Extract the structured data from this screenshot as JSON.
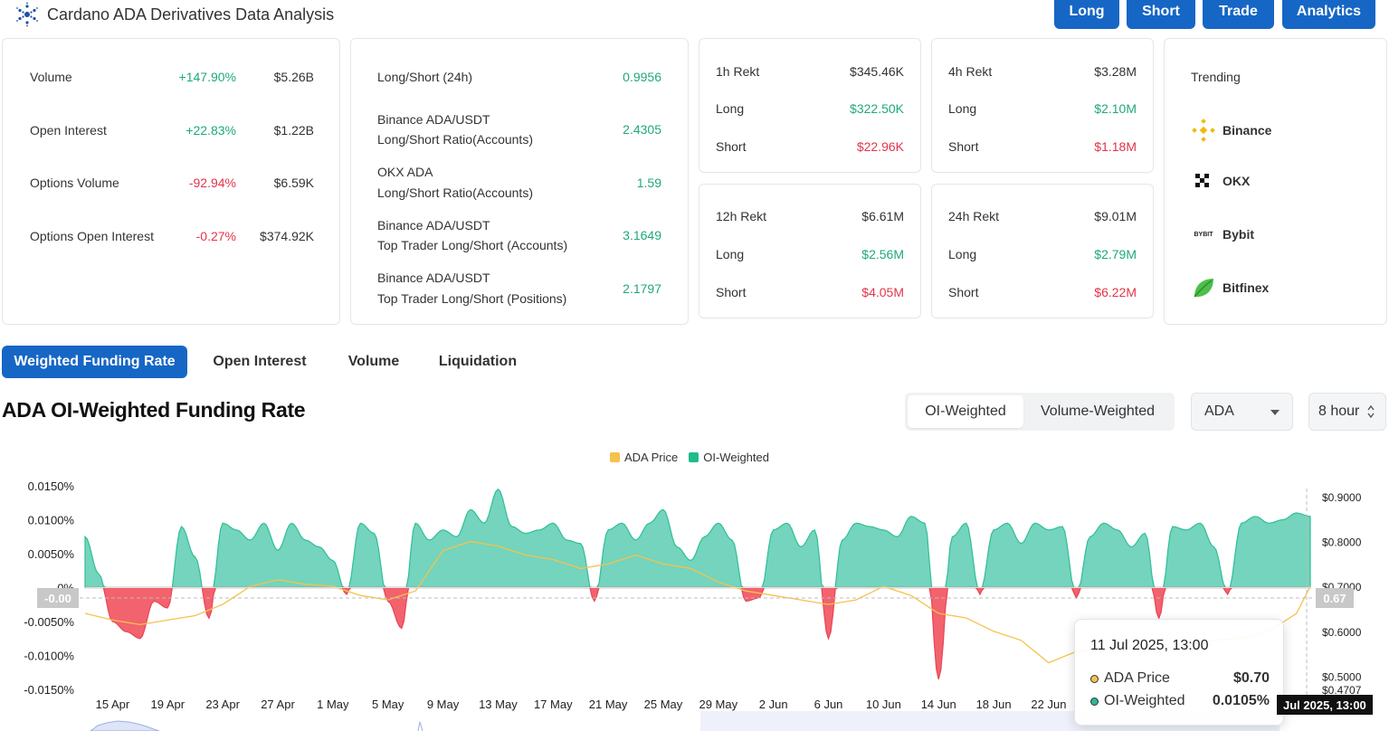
{
  "header": {
    "title": "Cardano ADA Derivatives Data Analysis",
    "buttons": [
      "Long",
      "Short",
      "Trade",
      "Analytics"
    ]
  },
  "overview": {
    "rows": [
      {
        "label": "Volume",
        "change": "+147.90%",
        "value": "$5.26B",
        "dir": "up"
      },
      {
        "label": "Open Interest",
        "change": "+22.83%",
        "value": "$1.22B",
        "dir": "up"
      },
      {
        "label": "Options Volume",
        "change": "-92.94%",
        "value": "$6.59K",
        "dir": "down"
      },
      {
        "label": "Options Open Interest",
        "change": "-0.27%",
        "value": "$374.92K",
        "dir": "down"
      }
    ]
  },
  "ratios": {
    "rows": [
      {
        "line1": "Long/Short (24h)",
        "line2": "",
        "value": "0.9956"
      },
      {
        "line1": "Binance ADA/USDT",
        "line2": "Long/Short Ratio(Accounts)",
        "value": "2.4305"
      },
      {
        "line1": "OKX ADA",
        "line2": "Long/Short Ratio(Accounts)",
        "value": "1.59"
      },
      {
        "line1": "Binance ADA/USDT",
        "line2": "Top Trader Long/Short (Accounts)",
        "value": "3.1649"
      },
      {
        "line1": "Binance ADA/USDT",
        "line2": "Top Trader Long/Short (Positions)",
        "value": "2.1797"
      }
    ]
  },
  "rekt": [
    {
      "title": "1h Rekt",
      "total": "$345.46K",
      "long_label": "Long",
      "long": "$322.50K",
      "short_label": "Short",
      "short": "$22.96K"
    },
    {
      "title": "4h Rekt",
      "total": "$3.28M",
      "long_label": "Long",
      "long": "$2.10M",
      "short_label": "Short",
      "short": "$1.18M"
    },
    {
      "title": "12h Rekt",
      "total": "$6.61M",
      "long_label": "Long",
      "long": "$2.56M",
      "short_label": "Short",
      "short": "$4.05M"
    },
    {
      "title": "24h Rekt",
      "total": "$9.01M",
      "long_label": "Long",
      "long": "$2.79M",
      "short_label": "Short",
      "short": "$6.22M"
    }
  ],
  "trending": {
    "title": "Trending",
    "items": [
      "Binance",
      "OKX",
      "Bybit",
      "Bitfinex"
    ],
    "bybit_logo_text": "BYBIT"
  },
  "tabs": [
    "Weighted Funding Rate",
    "Open Interest",
    "Volume",
    "Liquidation"
  ],
  "chart_section": {
    "title": "ADA OI-Weighted Funding Rate",
    "segments": [
      "OI-Weighted",
      "Volume-Weighted"
    ],
    "symbol": "ADA",
    "interval": "8 hour"
  },
  "tooltip": {
    "date": "11 Jul 2025, 13:00",
    "price_label": "ADA Price",
    "price_value": "$0.70",
    "rate_label": "OI-Weighted",
    "rate_value": "0.0105%"
  },
  "crosshair": {
    "x_label": "Jul 2025, 13:00",
    "left_label": "-0.00",
    "right_label": "0.67"
  },
  "colors": {
    "accent": "#1666c5",
    "positive": "#1ea97c",
    "negative": "#e3344a",
    "area_pos": "#5ccdb2",
    "area_neg": "#f2636e",
    "price_line": "#f5c24c"
  },
  "chart_data": {
    "type": "area",
    "legend": [
      "ADA Price",
      "OI-Weighted"
    ],
    "legend_position": "top-center",
    "x_ticks": [
      "15 Apr",
      "19 Apr",
      "23 Apr",
      "27 Apr",
      "1 May",
      "5 May",
      "9 May",
      "13 May",
      "17 May",
      "21 May",
      "25 May",
      "29 May",
      "2 Jun",
      "6 Jun",
      "10 Jun",
      "14 Jun",
      "18 Jun",
      "22 Jun"
    ],
    "y_left_ticks": [
      "0.0150%",
      "0.0100%",
      "0.0050%",
      "0%",
      "-0.0050%",
      "-0.0100%",
      "-0.0150%"
    ],
    "y_left_range": [
      -0.015,
      0.015
    ],
    "y_right_ticks": [
      "$0.9000",
      "$0.8000",
      "$0.7000",
      "$0.6000",
      "$0.5000",
      "$0.4707"
    ],
    "y_right_range": [
      0.4707,
      0.9
    ],
    "funding_rate_series": {
      "name": "OI-Weighted",
      "x": [
        "13 Apr",
        "14 Apr",
        "15 Apr",
        "16 Apr",
        "17 Apr",
        "18 Apr",
        "19 Apr",
        "20 Apr",
        "21 Apr",
        "22 Apr",
        "23 Apr",
        "24 Apr",
        "25 Apr",
        "26 Apr",
        "27 Apr",
        "28 Apr",
        "29 Apr",
        "30 Apr",
        "1 May",
        "2 May",
        "3 May",
        "4 May",
        "5 May",
        "6 May",
        "7 May",
        "8 May",
        "9 May",
        "10 May",
        "11 May",
        "12 May",
        "13 May",
        "14 May",
        "15 May",
        "16 May",
        "17 May",
        "18 May",
        "19 May",
        "20 May",
        "21 May",
        "22 May",
        "23 May",
        "24 May",
        "25 May",
        "26 May",
        "27 May",
        "28 May",
        "29 May",
        "30 May",
        "31 May",
        "1 Jun",
        "2 Jun",
        "3 Jun",
        "4 Jun",
        "5 Jun",
        "6 Jun",
        "7 Jun",
        "8 Jun",
        "9 Jun",
        "10 Jun",
        "11 Jun",
        "12 Jun",
        "13 Jun",
        "14 Jun",
        "15 Jun",
        "16 Jun",
        "17 Jun",
        "18 Jun",
        "19 Jun",
        "20 Jun",
        "21 Jun",
        "22 Jun",
        "23 Jun",
        "24 Jun",
        "25 Jun",
        "26 Jun",
        "27 Jun",
        "28 Jun",
        "29 Jun",
        "30 Jun",
        "1 Jul",
        "2 Jul",
        "3 Jul",
        "4 Jul",
        "5 Jul",
        "6 Jul",
        "7 Jul",
        "8 Jul",
        "9 Jul",
        "10 Jul",
        "11 Jul"
      ],
      "values": [
        0.0075,
        0.002,
        -0.005,
        -0.0065,
        -0.0075,
        -0.002,
        -0.003,
        0.009,
        0.0045,
        -0.0045,
        0.0095,
        0.0085,
        0.007,
        0.0095,
        0.0055,
        0.0095,
        0.007,
        0.006,
        0.004,
        -0.001,
        0.0095,
        0.008,
        -0.002,
        -0.006,
        0.0095,
        0.007,
        0.0085,
        0.0075,
        0.0115,
        0.0095,
        0.0145,
        0.009,
        0.008,
        0.0085,
        0.0095,
        0.007,
        0.0065,
        -0.002,
        0.0085,
        0.0095,
        0.007,
        0.0095,
        0.0115,
        0.006,
        0.004,
        0.0075,
        0.0095,
        0.007,
        -0.002,
        -0.0015,
        0.0085,
        0.0095,
        0.006,
        0.0085,
        -0.0075,
        0.007,
        0.0095,
        0.009,
        0.0085,
        0.0075,
        0.0105,
        0.0095,
        -0.0135,
        0.0075,
        0.0095,
        -0.001,
        0.0085,
        0.0095,
        0.0065,
        0.0095,
        0.0085,
        0.009,
        -0.0015,
        0.0075,
        0.0095,
        0.0085,
        0.006,
        0.008,
        -0.0045,
        0.009,
        0.0085,
        0.0095,
        0.006,
        -0.001,
        0.0095,
        0.0105,
        0.0095,
        0.01,
        0.011,
        0.0105
      ]
    },
    "price_series": {
      "name": "ADA Price",
      "x": [
        "13 Apr",
        "15 Apr",
        "17 Apr",
        "19 Apr",
        "21 Apr",
        "23 Apr",
        "25 Apr",
        "27 Apr",
        "29 Apr",
        "1 May",
        "3 May",
        "5 May",
        "7 May",
        "9 May",
        "11 May",
        "13 May",
        "15 May",
        "17 May",
        "19 May",
        "21 May",
        "23 May",
        "25 May",
        "27 May",
        "29 May",
        "31 May",
        "2 Jun",
        "4 Jun",
        "6 Jun",
        "8 Jun",
        "10 Jun",
        "12 Jun",
        "14 Jun",
        "16 Jun",
        "18 Jun",
        "20 Jun",
        "22 Jun",
        "24 Jun",
        "26 Jun",
        "28 Jun",
        "30 Jun",
        "2 Jul",
        "4 Jul",
        "6 Jul",
        "8 Jul",
        "10 Jul",
        "11 Jul"
      ],
      "values": [
        0.64,
        0.625,
        0.615,
        0.625,
        0.635,
        0.66,
        0.7,
        0.715,
        0.705,
        0.7,
        0.68,
        0.67,
        0.69,
        0.78,
        0.8,
        0.79,
        0.77,
        0.76,
        0.74,
        0.75,
        0.77,
        0.75,
        0.74,
        0.71,
        0.69,
        0.68,
        0.67,
        0.66,
        0.67,
        0.7,
        0.68,
        0.64,
        0.63,
        0.6,
        0.58,
        0.53,
        0.555,
        0.56,
        0.565,
        0.56,
        0.57,
        0.58,
        0.585,
        0.6,
        0.64,
        0.7
      ]
    }
  }
}
